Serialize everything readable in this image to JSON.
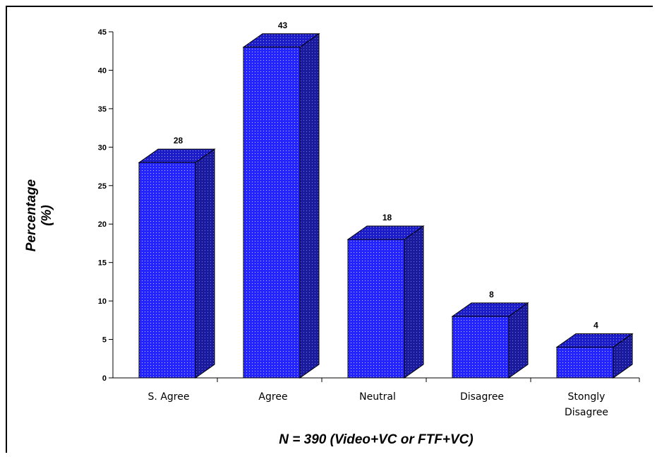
{
  "colors": {
    "bar_front": "#2424ff",
    "bar_top": "#1c1cc8",
    "bar_side": "#1a1a9c",
    "dot": "#c8c8ff"
  },
  "chart_data": {
    "type": "bar",
    "categories": [
      "S. Agree",
      "Agree",
      "Neutral",
      "Disagree",
      "Stongly Disagree"
    ],
    "category_lines": [
      [
        "S. Agree"
      ],
      [
        "Agree"
      ],
      [
        "Neutral"
      ],
      [
        "Disagree"
      ],
      [
        "Stongly",
        "Disagree"
      ]
    ],
    "values": [
      28,
      43,
      18,
      8,
      4
    ],
    "data_labels": [
      "28",
      "43",
      "18",
      "8",
      "4"
    ],
    "title": "",
    "xlabel": "N = 390 (Video+VC or FTF+VC)",
    "ylabel_lines": [
      "Percentage",
      "(%)"
    ],
    "ylim": [
      0,
      45
    ],
    "yticks": [
      0,
      5,
      10,
      15,
      20,
      25,
      30,
      35,
      40,
      45
    ],
    "style": "3d",
    "grid": false,
    "legend": "none"
  }
}
